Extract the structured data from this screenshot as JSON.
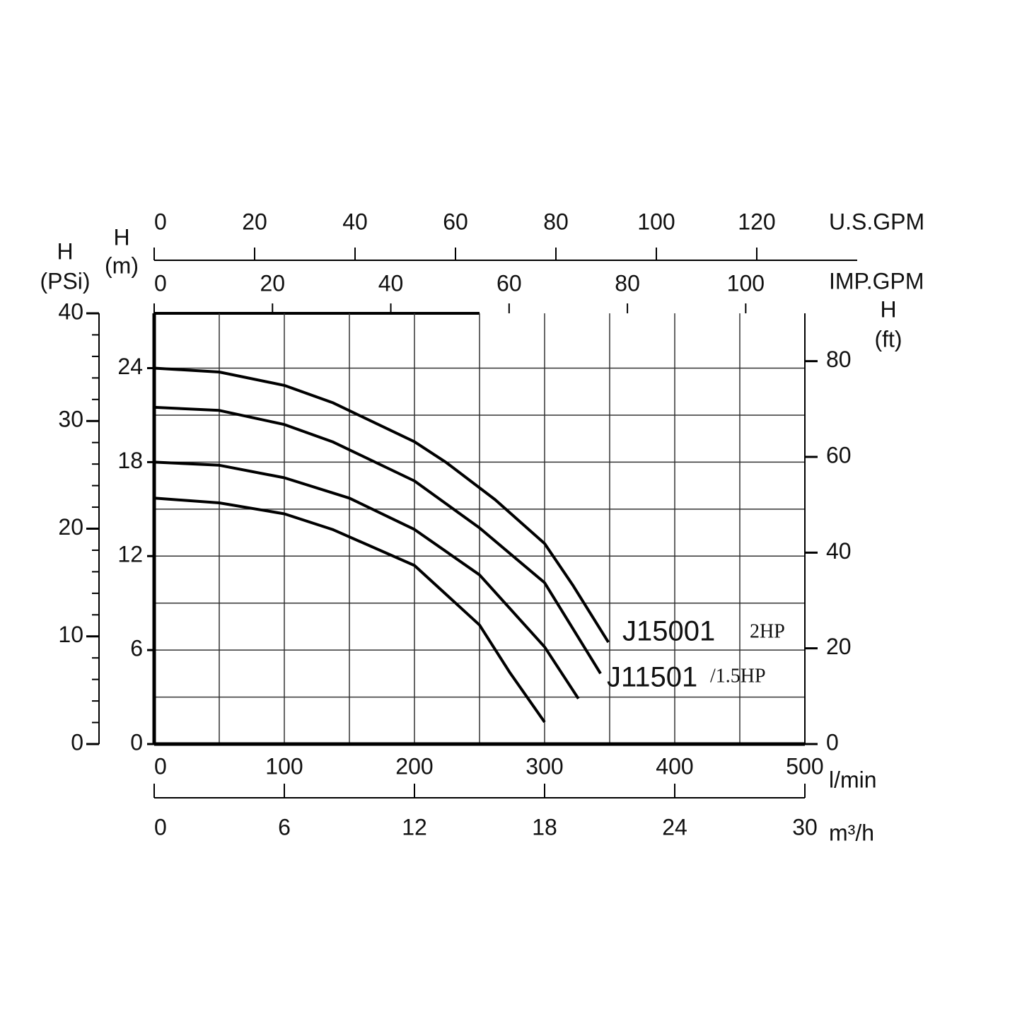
{
  "chart_data": {
    "type": "line",
    "axes": [
      {
        "label": [
          "U.S.GPM"
        ],
        "lim": [
          0,
          140
        ],
        "ticks": [
          0,
          20,
          40,
          60,
          80,
          100,
          120
        ]
      },
      {
        "label": [
          "IMP.GPM"
        ],
        "lim": [
          0,
          110
        ],
        "ticks": [
          0,
          20,
          40,
          60,
          80,
          100
        ]
      },
      {
        "label": [
          "l/min"
        ],
        "lim": [
          0,
          500
        ],
        "ticks": [
          0,
          100,
          200,
          300,
          400,
          500
        ]
      },
      {
        "label": [
          "m³/h"
        ],
        "lim": [
          0,
          30
        ],
        "ticks": [
          0,
          6,
          12,
          18,
          24,
          30
        ]
      },
      {
        "label": [
          "H",
          "(PSi)"
        ],
        "lim": [
          0,
          40
        ],
        "ticks": [
          0,
          10,
          20,
          30,
          40
        ],
        "minor_ticks": [
          2,
          4,
          6,
          8,
          12,
          14,
          16,
          18,
          22,
          24,
          26,
          28,
          32,
          34,
          36,
          38
        ]
      },
      {
        "label": [
          "H",
          "(m)"
        ],
        "lim": [
          0,
          27.5
        ],
        "ticks": [
          0,
          6,
          12,
          18,
          24
        ]
      },
      {
        "label": [
          "H",
          "(ft)"
        ],
        "lim": [
          0,
          90
        ],
        "ticks": [
          0,
          20,
          40,
          60,
          80
        ]
      }
    ],
    "xgrid": [
      50,
      100,
      150,
      200,
      250,
      300,
      350,
      400,
      450,
      500
    ],
    "ygrid": [
      3,
      6,
      9,
      12,
      15,
      18,
      21,
      24
    ],
    "series": [
      {
        "color": "#000000",
        "x": [
          0,
          50,
          100,
          137,
          200,
          224,
          262,
          300,
          322,
          349
        ],
        "values": [
          24,
          23.75,
          22.9,
          21.8,
          19.3,
          18,
          15.6,
          12.8,
          10.1,
          6.5
        ]
      },
      {
        "color": "#000000",
        "x": [
          0,
          50,
          100,
          137,
          200,
          250,
          300,
          343
        ],
        "values": [
          21.5,
          21.3,
          20.4,
          19.3,
          16.8,
          13.8,
          10.3,
          4.5
        ]
      },
      {
        "color": "#000000",
        "x": [
          0,
          50,
          100,
          150,
          200,
          250,
          300,
          326
        ],
        "values": [
          18,
          17.8,
          17,
          15.7,
          13.7,
          10.8,
          6.2,
          2.9
        ]
      },
      {
        "color": "#000000",
        "x": [
          0,
          50,
          100,
          137,
          200,
          250,
          273,
          300
        ],
        "values": [
          15.7,
          15.4,
          14.7,
          13.7,
          11.4,
          7.6,
          4.6,
          1.4
        ]
      }
    ],
    "annotations": [
      "J15001",
      "2HP",
      "J11501",
      "/1.5HP"
    ]
  }
}
